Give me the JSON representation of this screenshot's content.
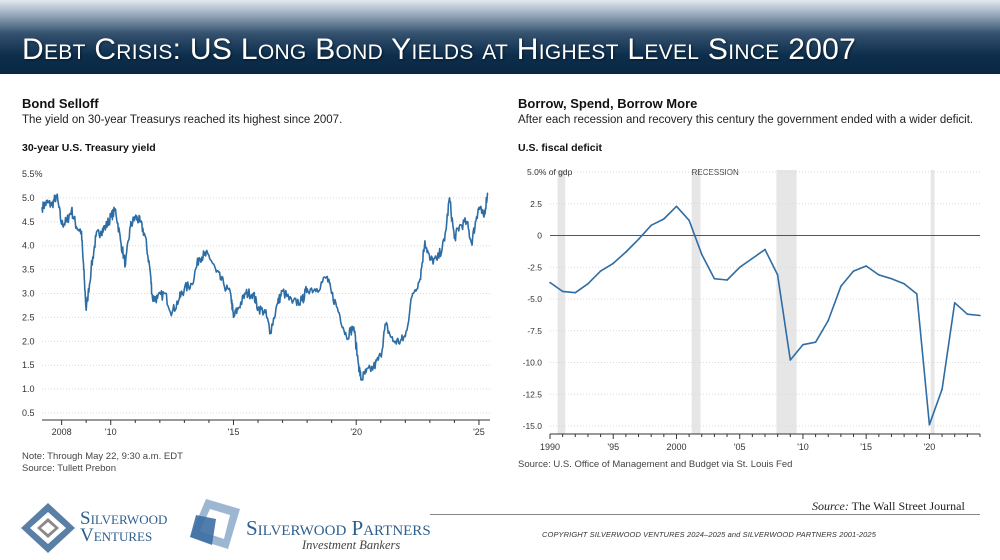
{
  "header": {
    "title": "Debt Crisis: US Long Bond Yields at Highest Level Since 2007"
  },
  "left_panel": {
    "title": "Bond Selloff",
    "subtitle": "The yield on 30-year Treasurys reached its highest since 2007.",
    "label": "30-year U.S. Treasury yield",
    "note": "Note: Through May 22, 9:30 a.m. EDT",
    "source": "Source: Tullett Prebon"
  },
  "right_panel": {
    "title": "Borrow, Spend, Borrow More",
    "subtitle": "After each recession and recovery this century the government ended with a wider deficit.",
    "label": "U.S. fiscal deficit",
    "source": "Source: U.S. Office of Management and Budget via St. Louis Fed"
  },
  "footer": {
    "source_prefix": "Source:",
    "source_name": "The Wall Street Journal",
    "copyright": "COPYRIGHT SILVERWOOD VENTURES 2024–2025 and SILVERWOOD PARTNERS 2001-2025",
    "logo1_line1": "Silverwood",
    "logo1_line2": "Ventures",
    "logo2_name": "Silverwood Partners",
    "logo2_tag": "Investment Bankers"
  },
  "colors": {
    "line": "#2e6da4",
    "banner": "#0c2e4c",
    "recession": "#e6e6e6",
    "logo": "#2e5f8e"
  },
  "chart_data": [
    {
      "type": "line",
      "title": "Bond Selloff",
      "ylabel": "30-year U.S. Treasury yield (%)",
      "ylim": [
        0.5,
        5.5
      ],
      "yticks": [
        0.5,
        1.0,
        1.5,
        2.0,
        2.5,
        3.0,
        3.5,
        4.0,
        4.5,
        5.0
      ],
      "ytick_labels": [
        "0.5",
        "1.0",
        "1.5",
        "2.0",
        "2.5",
        "3.0",
        "3.5",
        "4.0",
        "4.5",
        "5.0"
      ],
      "top_label": "5.5%",
      "xlim": [
        2007.2,
        2025.45
      ],
      "xticks": [
        2008,
        2010,
        2015,
        2020,
        2025
      ],
      "xtick_labels": [
        "2008",
        "'10",
        "'15",
        "'20",
        "'25"
      ],
      "x": [
        2007.2,
        2007.4,
        2007.6,
        2007.8,
        2008.0,
        2008.2,
        2008.4,
        2008.6,
        2008.8,
        2008.9,
        2009.0,
        2009.2,
        2009.4,
        2009.6,
        2009.8,
        2010.0,
        2010.2,
        2010.4,
        2010.6,
        2010.8,
        2011.0,
        2011.2,
        2011.4,
        2011.6,
        2011.7,
        2011.9,
        2012.2,
        2012.5,
        2012.8,
        2013.0,
        2013.3,
        2013.6,
        2013.8,
        2014.0,
        2014.3,
        2014.6,
        2014.9,
        2015.0,
        2015.2,
        2015.5,
        2015.8,
        2016.0,
        2016.3,
        2016.5,
        2016.8,
        2017.0,
        2017.4,
        2017.8,
        2018.0,
        2018.4,
        2018.8,
        2019.0,
        2019.3,
        2019.6,
        2019.9,
        2020.1,
        2020.2,
        2020.4,
        2020.7,
        2021.0,
        2021.2,
        2021.5,
        2021.8,
        2022.0,
        2022.3,
        2022.6,
        2022.8,
        2023.0,
        2023.3,
        2023.6,
        2023.8,
        2024.0,
        2024.2,
        2024.5,
        2024.7,
        2024.9,
        2025.0,
        2025.2,
        2025.35
      ],
      "values": [
        4.8,
        4.9,
        4.85,
        5.05,
        4.45,
        4.5,
        4.75,
        4.4,
        4.3,
        3.5,
        2.65,
        3.5,
        4.2,
        4.3,
        4.4,
        4.6,
        4.75,
        4.1,
        3.6,
        4.4,
        4.6,
        4.5,
        4.2,
        3.5,
        2.9,
        2.9,
        3.0,
        2.6,
        2.9,
        3.1,
        3.2,
        3.75,
        3.8,
        3.8,
        3.45,
        3.2,
        2.95,
        2.5,
        2.7,
        3.0,
        3.0,
        2.7,
        2.6,
        2.2,
        2.8,
        3.05,
        2.8,
        2.85,
        3.1,
        3.1,
        3.35,
        3.0,
        2.6,
        2.1,
        2.3,
        1.5,
        1.2,
        1.35,
        1.45,
        1.7,
        2.35,
        2.0,
        2.0,
        2.1,
        3.0,
        3.3,
        4.1,
        3.7,
        3.7,
        4.1,
        5.0,
        4.15,
        4.4,
        4.5,
        4.05,
        4.6,
        4.8,
        4.6,
        5.1
      ]
    },
    {
      "type": "line",
      "title": "Borrow, Spend, Borrow More",
      "ylabel": "U.S. fiscal deficit (% of GDP)",
      "ylim": [
        -15.0,
        5.0
      ],
      "yticks": [
        5.0,
        2.5,
        0,
        -2.5,
        -5.0,
        -7.5,
        -10.0,
        -12.5,
        -15.0
      ],
      "ytick_labels": [
        "5.0% of gdp",
        "2.5",
        "0",
        "-2.5",
        "-5.0",
        "-7.5",
        "-10.0",
        "-12.5",
        "-15.0"
      ],
      "xlim": [
        1990,
        2024
      ],
      "xticks": [
        1990,
        1995,
        2000,
        2005,
        2010,
        2015,
        2020
      ],
      "xtick_labels": [
        "1990",
        "'95",
        "2000",
        "'05",
        "'10",
        "'15",
        "'20"
      ],
      "recession_label": "RECESSION",
      "recessions": [
        [
          1990.6,
          1991.2
        ],
        [
          2001.2,
          2001.9
        ],
        [
          2007.9,
          2009.5
        ],
        [
          2020.1,
          2020.4
        ]
      ],
      "x": [
        1990,
        1991,
        1992,
        1993,
        1994,
        1995,
        1996,
        1997,
        1998,
        1999,
        2000,
        2001,
        2002,
        2003,
        2004,
        2005,
        2006,
        2007,
        2008,
        2009,
        2010,
        2011,
        2012,
        2013,
        2014,
        2015,
        2016,
        2017,
        2018,
        2019,
        2020,
        2021,
        2022,
        2023,
        2024
      ],
      "values": [
        -3.7,
        -4.4,
        -4.5,
        -3.8,
        -2.8,
        -2.2,
        -1.3,
        -0.3,
        0.8,
        1.3,
        2.3,
        1.2,
        -1.5,
        -3.4,
        -3.5,
        -2.5,
        -1.8,
        -1.1,
        -3.1,
        -9.8,
        -8.6,
        -8.4,
        -6.7,
        -4.0,
        -2.8,
        -2.4,
        -3.1,
        -3.4,
        -3.8,
        -4.6,
        -14.9,
        -12.1,
        -5.3,
        -6.2,
        -6.3
      ]
    }
  ]
}
